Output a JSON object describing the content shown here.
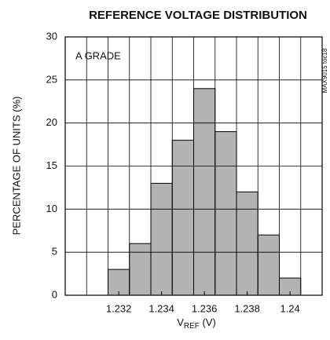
{
  "chart_data": {
    "type": "histogram",
    "title": "REFERENCE VOLTAGE DISTRIBUTION",
    "y_label": "PERCENTAGE OF UNITS (%)",
    "x_label": {
      "main": "V",
      "sub": "REF",
      "unit": " (V)"
    },
    "annotation": "A GRADE",
    "side_note": "MAX9015 toc18",
    "bins": [
      1.2305,
      1.2315,
      1.2325,
      1.2335,
      1.2345,
      1.2355,
      1.2365,
      1.2375,
      1.2385,
      1.2395,
      1.2405
    ],
    "counts": [
      0,
      3,
      6,
      13,
      18,
      24,
      19,
      12,
      7,
      2
    ],
    "color": "#b3b3b3",
    "xlim": [
      1.2295,
      1.2415
    ],
    "xticks": [
      1.232,
      1.234,
      1.236,
      1.238,
      1.24
    ],
    "ylim": [
      0,
      30
    ],
    "yticks": [
      0,
      5,
      10,
      15,
      20,
      25,
      30
    ],
    "grid": true
  }
}
